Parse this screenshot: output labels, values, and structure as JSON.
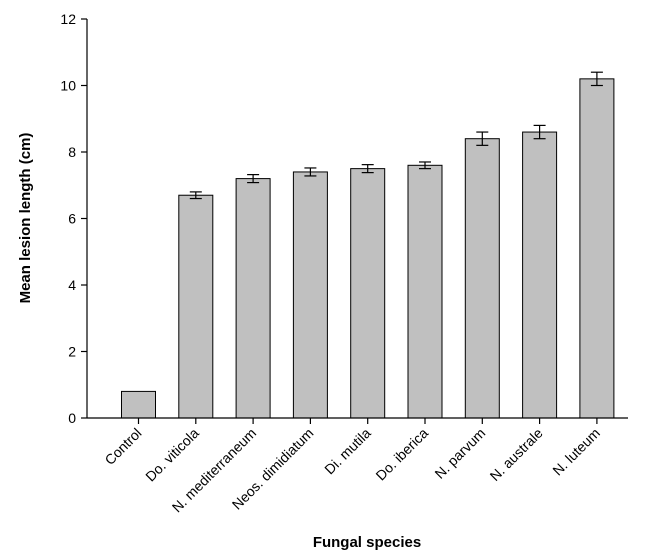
{
  "chart_data": {
    "type": "bar",
    "title": "",
    "xlabel": "Fungal species",
    "ylabel": "Mean lesion length (cm)",
    "ylim": [
      0,
      12
    ],
    "yticks": [
      0,
      2,
      4,
      6,
      8,
      10,
      12
    ],
    "grid": false,
    "categories": [
      "Control",
      "Do. viticola",
      "N. mediterraneum",
      "Neos. dimidiatum",
      "Di. mutila",
      "Do. iberica",
      "N. parvum",
      "N. australe",
      "N. luteum"
    ],
    "values": [
      0.8,
      6.7,
      7.2,
      7.4,
      7.5,
      7.6,
      8.4,
      8.6,
      10.2
    ],
    "errors": [
      0,
      0.1,
      0.12,
      0.12,
      0.12,
      0.1,
      0.2,
      0.2,
      0.2
    ],
    "bar_color": "#c0c0c0",
    "edge_color": "#000000"
  }
}
